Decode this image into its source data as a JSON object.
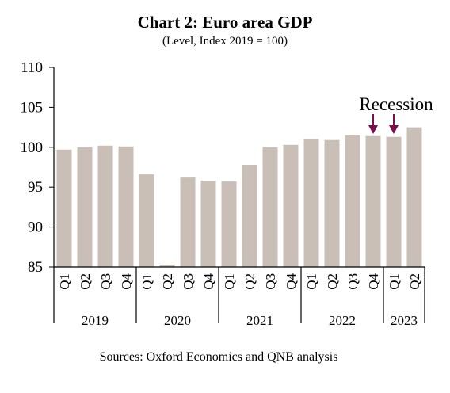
{
  "chart_data": {
    "type": "bar",
    "title": "Chart 2: Euro area GDP",
    "subtitle": "(Level, Index 2019 = 100)",
    "categories": [
      "Q1",
      "Q2",
      "Q3",
      "Q4",
      "Q1",
      "Q2",
      "Q3",
      "Q4",
      "Q1",
      "Q2",
      "Q3",
      "Q4",
      "Q1",
      "Q2",
      "Q3",
      "Q4",
      "Q1",
      "Q2"
    ],
    "years": [
      {
        "label": "2019",
        "count": 4
      },
      {
        "label": "2020",
        "count": 4
      },
      {
        "label": "2021",
        "count": 4
      },
      {
        "label": "2022",
        "count": 4
      },
      {
        "label": "2023",
        "count": 2
      }
    ],
    "values": [
      99.7,
      100.0,
      100.2,
      100.1,
      96.6,
      85.3,
      96.2,
      95.8,
      95.7,
      97.8,
      100.0,
      100.3,
      101.0,
      100.9,
      101.5,
      101.4,
      101.3,
      102.5
    ],
    "ylim": [
      85,
      110
    ],
    "yticks": [
      85,
      90,
      95,
      100,
      105,
      110
    ],
    "bar_color": "#c9bfb6",
    "grid": false,
    "annotation": {
      "text": "Recession",
      "arrow_color": "#7a0e4f",
      "arrow_indices": [
        15,
        16
      ]
    },
    "source": "Sources: Oxford Economics and QNB analysis"
  }
}
